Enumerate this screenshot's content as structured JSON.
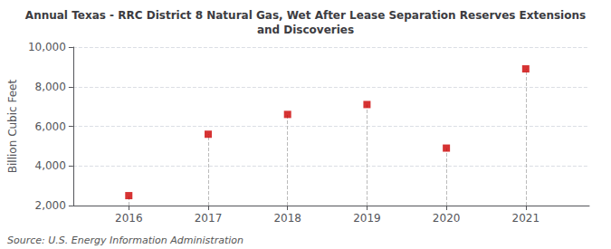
{
  "chart_data": {
    "type": "scatter",
    "title": "Annual Texas - RRC District 8 Natural Gas, Wet After Lease Separation Reserves Extensions\nand Discoveries",
    "ylabel": "Billion Cubic Feet",
    "annotation": "Source: U.S. Energy Information Administration",
    "x": [
      2016,
      2017,
      2018,
      2019,
      2020,
      2021
    ],
    "values": [
      2500,
      5600,
      6600,
      7100,
      4900,
      8900
    ],
    "color": "#cc0000",
    "marker": "square",
    "line_style": "dashed",
    "xlim": [
      2015.3,
      2021.8
    ],
    "xticks": [
      2016,
      2017,
      2018,
      2019,
      2020,
      2021
    ],
    "ylim": [
      2000,
      10000
    ],
    "yticks": [
      {
        "value": 2000,
        "label": "2,000"
      },
      {
        "value": 4000,
        "label": "4,000"
      },
      {
        "value": 6000,
        "label": "6,000"
      },
      {
        "value": 8000,
        "label": "8,000"
      },
      {
        "value": 10000,
        "label": "10,000"
      }
    ],
    "grid": true
  }
}
